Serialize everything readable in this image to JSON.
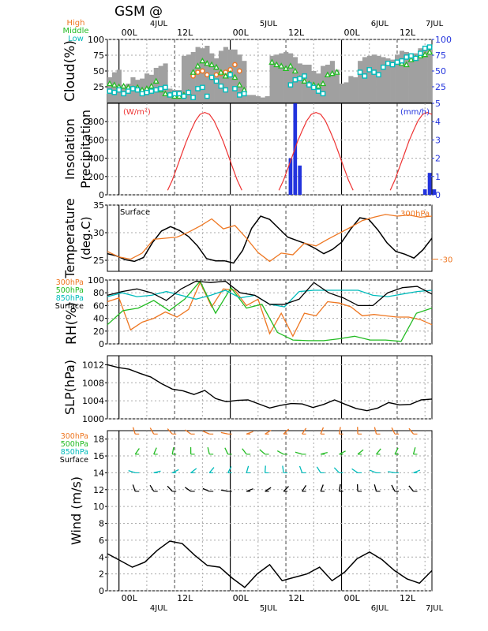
{
  "title": "GSM  @",
  "time_axis": {
    "top_hour_labels": [
      "00L",
      "12L",
      "00L",
      "12L",
      "00L",
      "12L",
      "00L"
    ],
    "bottom_hour_labels": [
      "00L",
      "12L",
      "00L",
      "12L",
      "00L",
      "12L",
      "00L"
    ],
    "date_labels": [
      "4JUL",
      "5JUL",
      "6JUL",
      "7JUL"
    ]
  },
  "colors": {
    "orange": "#ee7722",
    "green": "#22bb22",
    "cyan": "#00bbbb",
    "blue": "#2233dd",
    "red": "#ee3333",
    "black": "#000000",
    "gray": "#a0a0a0"
  },
  "chart_data": [
    {
      "type": "bar",
      "panel": "cloud",
      "ylabel": "Cloud(%)",
      "legend": [
        "High",
        "Middle",
        "Low"
      ],
      "ylim": [
        0,
        100
      ],
      "yticks_left": [
        "100",
        "75",
        "50",
        "25"
      ],
      "yticks_right": [
        "100",
        "75",
        "50",
        "25"
      ],
      "total_cover": [
        40,
        48,
        52,
        28,
        30,
        40,
        36,
        38,
        46,
        44,
        55,
        58,
        62,
        22,
        20,
        20,
        74,
        76,
        80,
        88,
        86,
        90,
        78,
        70,
        82,
        88,
        84,
        84,
        76,
        66,
        12,
        12,
        10,
        8,
        10,
        74,
        76,
        78,
        80,
        78,
        72,
        62,
        60,
        60,
        50,
        46,
        58,
        60,
        66,
        52,
        30,
        32,
        42,
        40,
        66,
        72,
        74,
        76,
        74,
        72,
        70,
        68,
        76,
        82,
        80,
        76,
        78,
        86,
        84,
        88
      ],
      "series": [
        {
          "name": "High",
          "values": [
            null,
            null,
            null,
            null,
            null,
            null,
            null,
            null,
            null,
            null,
            null,
            null,
            null,
            null,
            null,
            null,
            null,
            null,
            42,
            48,
            50,
            44,
            40,
            44,
            46,
            48,
            52,
            60,
            50,
            null,
            null,
            null,
            null,
            null,
            null,
            null,
            null,
            null,
            null,
            null,
            null,
            null,
            null,
            null,
            null,
            null,
            null,
            null,
            null,
            null,
            null,
            null,
            null,
            null,
            null,
            null,
            null,
            null,
            null,
            null,
            null,
            null,
            null,
            null,
            null,
            null,
            null,
            null,
            null,
            null
          ]
        },
        {
          "name": "Middle",
          "values": [
            30,
            28,
            25,
            26,
            24,
            22,
            24,
            20,
            22,
            26,
            34,
            20,
            14,
            12,
            10,
            10,
            12,
            16,
            48,
            58,
            66,
            62,
            60,
            56,
            48,
            42,
            46,
            40,
            28,
            20,
            null,
            null,
            null,
            null,
            null,
            64,
            60,
            58,
            54,
            58,
            50,
            38,
            34,
            30,
            28,
            26,
            30,
            44,
            46,
            48,
            null,
            null,
            null,
            null,
            null,
            null,
            null,
            null,
            null,
            null,
            null,
            null,
            null,
            62,
            60,
            68,
            70,
            74,
            76,
            80
          ]
        },
        {
          "name": "Low",
          "values": [
            18,
            16,
            20,
            14,
            18,
            22,
            20,
            14,
            16,
            18,
            20,
            22,
            24,
            12,
            14,
            14,
            10,
            16,
            8,
            22,
            24,
            10,
            40,
            34,
            26,
            20,
            44,
            22,
            12,
            14,
            null,
            null,
            null,
            null,
            null,
            null,
            null,
            null,
            null,
            28,
            36,
            38,
            42,
            28,
            24,
            18,
            14,
            null,
            null,
            null,
            null,
            null,
            null,
            null,
            48,
            42,
            52,
            48,
            44,
            56,
            62,
            60,
            64,
            66,
            72,
            74,
            70,
            78,
            86,
            88
          ]
        }
      ]
    },
    {
      "type": "bar",
      "panel": "insolation-precipitation",
      "ylabel": "Insolation Precipitation",
      "ylim_left": [
        0,
        1000
      ],
      "ylim_right": [
        0,
        5
      ],
      "unit_left": "(W/m²)",
      "unit_right": "(mm/h)",
      "yticks_left": [
        "800",
        "600",
        "400",
        "200",
        "0"
      ],
      "yticks_right": [
        "5",
        "4",
        "3",
        "2",
        "1",
        "0"
      ],
      "insolation": [
        0,
        0,
        0,
        0,
        0,
        0,
        0,
        0,
        0,
        0,
        0,
        0,
        0,
        50,
        160,
        300,
        440,
        580,
        700,
        810,
        880,
        900,
        880,
        810,
        700,
        580,
        440,
        300,
        160,
        50,
        0,
        0,
        0,
        0,
        0,
        0,
        0,
        0,
        0,
        0,
        0,
        0,
        0,
        0,
        0,
        0,
        0,
        0,
        0,
        0,
        0,
        0,
        0,
        0,
        0,
        0,
        0,
        0,
        0,
        0,
        0,
        0,
        0,
        0,
        0,
        0,
        0,
        0,
        0,
        0
      ],
      "precipitation": [
        {
          "x": 39.5,
          "y": 2.0
        },
        {
          "x": 40.5,
          "y": 5.0
        },
        {
          "x": 41.5,
          "y": 1.6
        },
        {
          "x": 68.5,
          "y": 0.3
        },
        {
          "x": 69.5,
          "y": 1.2
        },
        {
          "x": 70.5,
          "y": 0.3
        }
      ]
    },
    {
      "type": "line",
      "panel": "temperature",
      "ylabel": "Temperature (deg.C)",
      "ylim": [
        23,
        35
      ],
      "yticks_left": [
        "35",
        "30",
        "25"
      ],
      "right_labels": [
        "300hPa",
        "-30"
      ],
      "surface_label": "Surface",
      "series": [
        {
          "name": "Surface",
          "values": [
            26.2,
            25.8,
            25.1,
            24.8,
            25.5,
            28.2,
            30.3,
            31.1,
            30.4,
            29.3,
            27.6,
            25.3,
            24.9,
            24.9,
            24.5,
            26.8,
            30.8,
            33.0,
            32.4,
            30.8,
            29.2,
            28.6,
            28.0,
            27.2,
            26.2,
            27.0,
            28.3,
            30.7,
            32.7,
            32.4,
            30.5,
            28.2,
            26.6,
            26.1,
            25.4,
            26.9,
            29.0
          ]
        },
        {
          "name": "300hPa",
          "values": [
            26.6,
            25.6,
            25.2,
            26.3,
            28.8,
            29.0,
            29.2,
            30.1,
            31.2,
            32.5,
            30.7,
            31.3,
            29.0,
            26.4,
            24.8,
            26.3,
            26.0,
            28.1,
            27.6,
            28.8,
            29.9,
            31.0,
            32.2,
            32.8,
            33.3,
            33.0,
            33.2,
            32.8,
            33.0
          ]
        }
      ]
    },
    {
      "type": "line",
      "panel": "relative-humidity",
      "ylabel": "RH(%)",
      "ylim": [
        0,
        100
      ],
      "yticks_left": [
        "100",
        "80",
        "60",
        "40",
        "20",
        "0"
      ],
      "legend": [
        "300hPa",
        "500hPa",
        "850hPa",
        "Surface"
      ],
      "series": [
        {
          "name": "300hPa",
          "values": [
            66,
            72,
            22,
            34,
            40,
            50,
            42,
            54,
            96,
            58,
            86,
            84,
            60,
            70,
            16,
            48,
            12,
            48,
            44,
            66,
            64,
            58,
            44,
            46,
            44,
            42,
            42,
            38,
            30
          ]
        },
        {
          "name": "500hPa",
          "values": [
            30,
            52,
            56,
            68,
            52,
            70,
            98,
            48,
            88,
            56,
            62,
            18,
            6,
            5,
            5,
            8,
            12,
            6,
            6,
            4,
            48,
            56
          ]
        },
        {
          "name": "850hPa",
          "values": [
            74,
            80,
            74,
            76,
            82,
            76,
            70,
            76,
            84,
            72,
            76,
            62,
            58,
            82,
            84,
            84,
            84,
            84,
            76,
            74,
            78,
            82,
            84
          ]
        },
        {
          "name": "Surface",
          "values": [
            76,
            82,
            86,
            80,
            68,
            86,
            98,
            96,
            98,
            80,
            76,
            62,
            62,
            70,
            96,
            80,
            72,
            60,
            60,
            80,
            88,
            90,
            78
          ]
        }
      ]
    },
    {
      "type": "line",
      "panel": "sea-level-pressure",
      "ylabel": "SLP(hPa)",
      "ylim": [
        1000,
        1014
      ],
      "yticks_left": [
        "1012",
        "1008",
        "1004",
        "1000"
      ],
      "series": [
        {
          "name": "SLP",
          "values": [
            1012.0,
            1011.4,
            1011.0,
            1010.1,
            1009.3,
            1007.8,
            1006.6,
            1006.2,
            1005.4,
            1006.3,
            1004.5,
            1003.8,
            1004.1,
            1004.2,
            1003.3,
            1002.4,
            1003.0,
            1003.4,
            1003.3,
            1002.5,
            1003.2,
            1004.2,
            1003.2,
            1002.3,
            1001.8,
            1002.4,
            1003.6,
            1003.1,
            1003.2,
            1004.2,
            1004.4
          ]
        }
      ]
    },
    {
      "type": "line",
      "panel": "wind",
      "ylabel": "Wind (m/s)",
      "ylim": [
        0,
        19
      ],
      "yticks_left": [
        "18",
        "16",
        "14",
        "12",
        "10",
        "8",
        "6",
        "4",
        "2",
        "0"
      ],
      "legend": [
        "300hPa",
        "500hPa",
        "850hPa",
        "Surface"
      ],
      "series": [
        {
          "name": "Surface",
          "values": [
            4.4,
            3.6,
            2.8,
            3.4,
            4.8,
            5.9,
            5.6,
            4.2,
            3.0,
            2.8,
            1.5,
            0.4,
            2.0,
            3.1,
            1.2,
            1.6,
            2.0,
            2.8,
            1.2,
            2.2,
            3.8,
            4.6,
            3.7,
            2.4,
            1.4,
            0.9,
            2.4
          ]
        }
      ]
    }
  ]
}
